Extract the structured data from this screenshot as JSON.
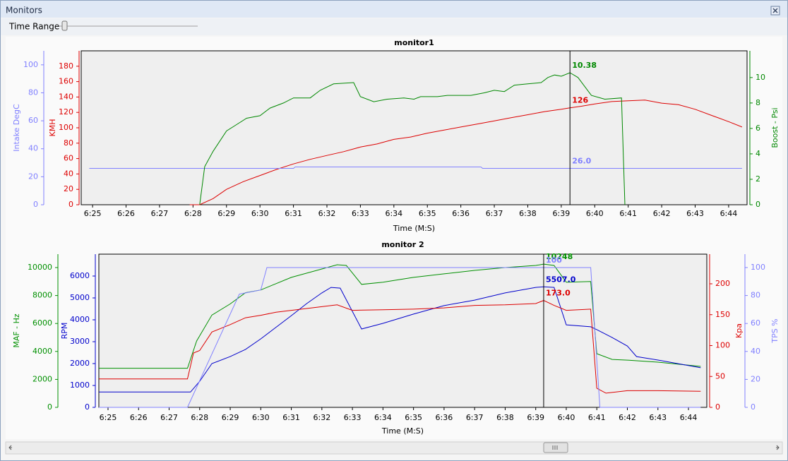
{
  "window": {
    "title": "Monitors",
    "time_range": "Time Range"
  },
  "chart_data": [
    {
      "type": "line",
      "title": "monitor1",
      "x_title": "Time (M:S)",
      "xlim": [
        384.66,
        404.55
      ],
      "xticks": [
        {
          "value": 385,
          "label": "6:25"
        },
        {
          "value": 386,
          "label": "6:26"
        },
        {
          "value": 387,
          "label": "6:27"
        },
        {
          "value": 388,
          "label": "6:28"
        },
        {
          "value": 389,
          "label": "6:29"
        },
        {
          "value": 390,
          "label": "6:30"
        },
        {
          "value": 391,
          "label": "6:31"
        },
        {
          "value": 392,
          "label": "6:32"
        },
        {
          "value": 393,
          "label": "6:33"
        },
        {
          "value": 394,
          "label": "6:34"
        },
        {
          "value": 395,
          "label": "6:35"
        },
        {
          "value": 396,
          "label": "6:36"
        },
        {
          "value": 397,
          "label": "6:37"
        },
        {
          "value": 398,
          "label": "6:38"
        },
        {
          "value": 399,
          "label": "6:39"
        },
        {
          "value": 400,
          "label": "6:40"
        },
        {
          "value": 401,
          "label": "6:41"
        },
        {
          "value": 402,
          "label": "6:42"
        },
        {
          "value": 403,
          "label": "6:43"
        },
        {
          "value": 404,
          "label": "6:44"
        }
      ],
      "axes": [
        {
          "title": "KMH",
          "color": "#dd0000",
          "ylim": [
            0,
            200
          ],
          "yticks": [
            0,
            20,
            40,
            60,
            80,
            100,
            120,
            140,
            160,
            180
          ]
        },
        {
          "title": "Intake DegC",
          "color": "#8080ff",
          "ylim": [
            0,
            110
          ],
          "yticks": [
            0,
            20,
            40,
            60,
            80,
            100
          ]
        },
        {
          "title": "Boost - Psi",
          "color": "#008800",
          "ylim": [
            0,
            12.1
          ],
          "yticks": [
            0,
            2,
            4,
            6,
            8,
            10
          ]
        }
      ],
      "cursor": {
        "x": 399.26
      },
      "series": [
        {
          "name": "KMH",
          "axis": 0,
          "color": "#dd0000",
          "cursor_value": 126,
          "x": [
            387.9,
            388.2,
            388.6,
            389,
            389.5,
            390,
            390.5,
            391,
            391.5,
            392,
            392.5,
            393,
            393.5,
            394,
            394.5,
            395,
            395.5,
            396,
            396.5,
            397,
            397.5,
            398,
            398.5,
            399,
            399.26,
            399.6,
            400,
            400.5,
            401,
            401.5,
            402,
            402.5,
            403,
            403.5,
            404,
            404.4
          ],
          "values": [
            0,
            0,
            8,
            20,
            30,
            38,
            46,
            53,
            59,
            64,
            69,
            75,
            79,
            85,
            88,
            93,
            97,
            101,
            105,
            109,
            113,
            117,
            121,
            124,
            126,
            128,
            131,
            134,
            135,
            136,
            132,
            130,
            124,
            116,
            108,
            101
          ]
        },
        {
          "name": "Intake DegC",
          "axis": 1,
          "color": "#8080ff",
          "cursor_value": {
            "value": 26,
            "label": "26.0"
          },
          "x": [
            384.9,
            391,
            391.05,
            396.6,
            396.65,
            404.4
          ],
          "values": [
            26,
            26,
            27,
            27,
            26,
            26
          ]
        },
        {
          "name": "Boost - Psi",
          "axis": 2,
          "color": "#008800",
          "cursor_value": 10.38,
          "x": [
            388.2,
            388.35,
            388.6,
            389,
            389.3,
            389.6,
            390,
            390.3,
            390.7,
            391,
            391.5,
            391.8,
            392.2,
            392.8,
            393,
            393.4,
            393.8,
            394.3,
            394.6,
            394.8,
            395.3,
            395.6,
            396.3,
            396.7,
            397,
            397.3,
            397.6,
            398,
            398.4,
            398.6,
            398.8,
            399,
            399.26,
            399.5,
            399.9,
            400.3,
            400.8,
            400.9
          ],
          "values": [
            0,
            3,
            4.2,
            5.8,
            6.3,
            6.8,
            7.0,
            7.6,
            8.0,
            8.4,
            8.4,
            9.0,
            9.5,
            9.6,
            8.5,
            8.1,
            8.3,
            8.4,
            8.3,
            8.5,
            8.5,
            8.6,
            8.6,
            8.8,
            9.0,
            8.9,
            9.4,
            9.5,
            9.6,
            10.0,
            10.2,
            10.1,
            10.38,
            10.0,
            8.6,
            8.3,
            8.4,
            0
          ]
        }
      ]
    },
    {
      "type": "line",
      "title": "monitor 2",
      "x_title": "Time (M:S)",
      "xlim": [
        384.7,
        404.6
      ],
      "xticks": [
        {
          "value": 385,
          "label": "6:25"
        },
        {
          "value": 386,
          "label": "6:26"
        },
        {
          "value": 387,
          "label": "6:27"
        },
        {
          "value": 388,
          "label": "6:28"
        },
        {
          "value": 389,
          "label": "6:29"
        },
        {
          "value": 390,
          "label": "6:30"
        },
        {
          "value": 391,
          "label": "6:31"
        },
        {
          "value": 392,
          "label": "6:32"
        },
        {
          "value": 393,
          "label": "6:33"
        },
        {
          "value": 394,
          "label": "6:34"
        },
        {
          "value": 395,
          "label": "6:35"
        },
        {
          "value": 396,
          "label": "6:36"
        },
        {
          "value": 397,
          "label": "6:37"
        },
        {
          "value": 398,
          "label": "6:38"
        },
        {
          "value": 399,
          "label": "6:39"
        },
        {
          "value": 400,
          "label": "6:40"
        },
        {
          "value": 401,
          "label": "6:41"
        },
        {
          "value": 402,
          "label": "6:42"
        },
        {
          "value": 403,
          "label": "6:43"
        },
        {
          "value": 404,
          "label": "6:44"
        }
      ],
      "axes": [
        {
          "title": "RPM",
          "color": "#0000cc",
          "ylim": [
            0,
            7000
          ],
          "yticks": [
            0,
            1000,
            2000,
            3000,
            4000,
            5000,
            6000
          ]
        },
        {
          "title": "MAF - Hz",
          "color": "#009000",
          "ylim": [
            0,
            10960
          ],
          "yticks": [
            0,
            2000,
            4000,
            6000,
            8000,
            10000
          ]
        },
        {
          "title": "Kpa",
          "color": "#dd0000",
          "ylim": [
            0,
            248
          ],
          "yticks": [
            0,
            50,
            100,
            150,
            200
          ]
        },
        {
          "title": "TPS %",
          "color": "#8080ff",
          "ylim": [
            0,
            109.6
          ],
          "yticks": [
            0,
            20,
            40,
            60,
            80,
            100
          ]
        }
      ],
      "cursor": {
        "x": 399.26
      },
      "series": [
        {
          "name": "MAF - Hz",
          "axis": 1,
          "color": "#009000",
          "cursor_value": 10248,
          "x": [
            384.7,
            387.6,
            387.9,
            388.4,
            389,
            389.5,
            390,
            391,
            392,
            392.5,
            392.8,
            393.3,
            394,
            395,
            396,
            397,
            398,
            399,
            399.26,
            399.6,
            400,
            400.8,
            401,
            401.5,
            402,
            403,
            404.4
          ],
          "values": [
            2800,
            2800,
            4750,
            6600,
            7400,
            8200,
            8400,
            9300,
            9900,
            10200,
            10150,
            8800,
            8950,
            9300,
            9550,
            9800,
            10000,
            10150,
            10248,
            10150,
            8950,
            9000,
            3840,
            3430,
            3380,
            3230,
            2930
          ]
        },
        {
          "name": "RPM",
          "axis": 0,
          "color": "#0000cc",
          "cursor_value": {
            "value": 5507,
            "label": "5507.0"
          },
          "x": [
            384.7,
            387.7,
            388,
            388.4,
            389,
            389.5,
            390,
            390.3,
            391,
            391.5,
            392,
            392.3,
            392.6,
            393.3,
            394,
            395,
            396,
            397,
            398,
            399,
            399.26,
            399.6,
            400,
            400.8,
            401,
            401.5,
            402,
            402.3,
            403,
            404.4
          ],
          "values": [
            700,
            700,
            1190,
            2000,
            2320,
            2650,
            3130,
            3450,
            4190,
            4740,
            5230,
            5480,
            5450,
            3580,
            3840,
            4260,
            4650,
            4900,
            5230,
            5480,
            5507,
            5480,
            3770,
            3680,
            3550,
            3190,
            2800,
            2320,
            2160,
            1810
          ]
        },
        {
          "name": "Kpa",
          "axis": 2,
          "color": "#dd0000",
          "cursor_value": {
            "value": 173,
            "label": "173.0"
          },
          "x": [
            384.7,
            387.6,
            387.8,
            388,
            388.4,
            389,
            389.5,
            390,
            390.5,
            391,
            392,
            392.5,
            393,
            394,
            395,
            396,
            397,
            398,
            399,
            399.26,
            399.6,
            400,
            400.8,
            401,
            401.3,
            402,
            403,
            404.4
          ],
          "values": [
            46,
            46,
            88,
            92,
            122,
            134,
            145,
            149,
            154,
            157,
            163,
            166,
            157,
            158,
            159,
            161,
            165,
            166,
            168,
            173,
            165,
            157,
            159,
            31,
            23,
            27,
            27,
            26
          ]
        },
        {
          "name": "TPS %",
          "axis": 3,
          "color": "#8080ff",
          "cursor_value": 100,
          "x": [
            384.7,
            387.6,
            389.3,
            390,
            390.2,
            400.8,
            401.1,
            404.4
          ],
          "values": [
            0,
            0,
            81,
            84,
            100,
            100,
            0,
            0
          ]
        }
      ]
    }
  ]
}
